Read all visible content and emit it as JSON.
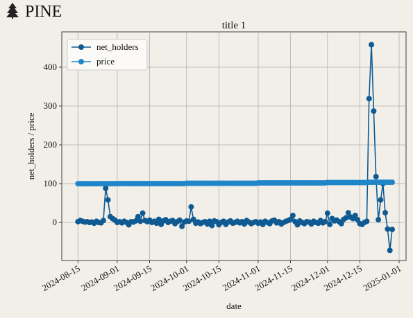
{
  "logo": "PINE",
  "chart_data": {
    "type": "line",
    "title": "title 1",
    "xlabel": "date",
    "ylabel": "net_holders / price",
    "x": [
      "2024-08-15",
      "2024-08-16",
      "2024-08-17",
      "2024-08-18",
      "2024-08-19",
      "2024-08-20",
      "2024-08-21",
      "2024-08-22",
      "2024-08-23",
      "2024-08-24",
      "2024-08-25",
      "2024-08-26",
      "2024-08-27",
      "2024-08-28",
      "2024-08-29",
      "2024-08-30",
      "2024-08-31",
      "2024-09-01",
      "2024-09-02",
      "2024-09-03",
      "2024-09-04",
      "2024-09-05",
      "2024-09-06",
      "2024-09-07",
      "2024-09-08",
      "2024-09-09",
      "2024-09-10",
      "2024-09-11",
      "2024-09-12",
      "2024-09-13",
      "2024-09-14",
      "2024-09-15",
      "2024-09-16",
      "2024-09-17",
      "2024-09-18",
      "2024-09-19",
      "2024-09-20",
      "2024-09-21",
      "2024-09-22",
      "2024-09-23",
      "2024-09-24",
      "2024-09-25",
      "2024-09-26",
      "2024-09-27",
      "2024-09-28",
      "2024-09-29",
      "2024-09-30",
      "2024-10-01",
      "2024-10-02",
      "2024-10-03",
      "2024-10-04",
      "2024-10-05",
      "2024-10-06",
      "2024-10-07",
      "2024-10-08",
      "2024-10-09",
      "2024-10-10",
      "2024-10-11",
      "2024-10-12",
      "2024-10-13",
      "2024-10-14",
      "2024-10-15",
      "2024-10-16",
      "2024-10-17",
      "2024-10-18",
      "2024-10-19",
      "2024-10-20",
      "2024-10-21",
      "2024-10-22",
      "2024-10-23",
      "2024-10-24",
      "2024-10-25",
      "2024-10-26",
      "2024-10-27",
      "2024-10-28",
      "2024-10-29",
      "2024-10-30",
      "2024-10-31",
      "2024-11-01",
      "2024-11-02",
      "2024-11-03",
      "2024-11-04",
      "2024-11-05",
      "2024-11-06",
      "2024-11-07",
      "2024-11-08",
      "2024-11-09",
      "2024-11-10",
      "2024-11-11",
      "2024-11-12",
      "2024-11-13",
      "2024-11-14",
      "2024-11-15",
      "2024-11-16",
      "2024-11-17",
      "2024-11-18",
      "2024-11-19",
      "2024-11-20",
      "2024-11-21",
      "2024-11-22",
      "2024-11-23",
      "2024-11-24",
      "2024-11-25",
      "2024-11-26",
      "2024-11-27",
      "2024-11-28",
      "2024-11-29",
      "2024-11-30",
      "2024-12-01",
      "2024-12-02",
      "2024-12-03",
      "2024-12-04",
      "2024-12-05",
      "2024-12-06",
      "2024-12-07",
      "2024-12-08",
      "2024-12-09",
      "2024-12-10",
      "2024-12-11",
      "2024-12-12",
      "2024-12-13",
      "2024-12-14",
      "2024-12-15",
      "2024-12-16",
      "2024-12-17",
      "2024-12-18",
      "2024-12-19",
      "2024-12-20",
      "2024-12-21",
      "2024-12-22",
      "2024-12-23",
      "2024-12-24",
      "2024-12-25",
      "2024-12-26",
      "2024-12-27",
      "2024-12-28",
      "2024-12-29"
    ],
    "series": [
      {
        "name": "net_holders",
        "color": "#0f5a92",
        "values": [
          2,
          5,
          3,
          1,
          2,
          0,
          1,
          -2,
          3,
          0,
          -1,
          5,
          88,
          58,
          15,
          10,
          6,
          0,
          2,
          -1,
          3,
          0,
          -6,
          2,
          1,
          4,
          15,
          3,
          24,
          5,
          2,
          6,
          0,
          3,
          -2,
          8,
          -5,
          4,
          7,
          0,
          3,
          5,
          -3,
          2,
          6,
          -10,
          1,
          4,
          3,
          40,
          8,
          -2,
          1,
          -3,
          0,
          2,
          -4,
          3,
          -8,
          4,
          2,
          -6,
          0,
          3,
          -5,
          1,
          4,
          -2,
          0,
          3,
          -1,
          2,
          -4,
          5,
          1,
          -3,
          0,
          2,
          -2,
          1,
          -5,
          3,
          0,
          -3,
          4,
          6,
          -1,
          2,
          -4,
          0,
          3,
          5,
          8,
          18,
          2,
          -6,
          4,
          0,
          -3,
          2,
          1,
          -4,
          3,
          0,
          -2,
          5,
          -1,
          2,
          24,
          -5,
          10,
          4,
          6,
          2,
          -3,
          8,
          12,
          25,
          14,
          10,
          18,
          7,
          -3,
          -5,
          0,
          3,
          319,
          458,
          287,
          118,
          7,
          58,
          100,
          25,
          -17,
          -72,
          -18
        ]
      },
      {
        "name": "price",
        "color": "#1f86c8",
        "values": [
          99.8,
          99.8,
          99.8,
          99.8,
          99.8,
          99.8,
          99.8,
          99.8,
          99.8,
          99.8,
          99.8,
          99.8,
          99.8,
          99.8,
          99.8,
          99.8,
          99.8,
          100.2,
          100.2,
          100.2,
          100.2,
          100.2,
          100.2,
          100.2,
          100.2,
          100.2,
          100.2,
          100.2,
          100.2,
          100.2,
          100.2,
          100.2,
          100.2,
          100.2,
          100.2,
          100.2,
          100.2,
          100.2,
          100.2,
          100.2,
          100.2,
          100.2,
          100.2,
          100.2,
          100.2,
          100.2,
          100.2,
          101,
          101,
          101,
          101,
          101,
          101,
          101,
          101,
          101,
          101,
          101,
          101,
          101,
          101,
          101,
          101,
          101,
          101,
          101,
          101,
          101,
          101,
          101,
          101,
          101,
          101,
          101,
          101,
          101,
          101,
          101,
          101.8,
          101.8,
          101.8,
          101.8,
          101.8,
          101.8,
          101.8,
          101.8,
          101.8,
          101.8,
          101.8,
          101.8,
          101.8,
          101.8,
          101.8,
          101.8,
          101.8,
          101.8,
          101.8,
          101.8,
          101.8,
          101.8,
          101.8,
          101.8,
          101.8,
          101.8,
          101.8,
          101.8,
          101.8,
          101.8,
          102.8,
          102.8,
          102.8,
          102.8,
          102.8,
          102.8,
          102.8,
          102.8,
          102.8,
          102.8,
          102.8,
          102.8,
          102.8,
          102.8,
          102.8,
          102.8,
          102.8,
          102.8,
          103.5,
          103.5,
          103.5,
          103.5,
          103.5,
          103.5,
          103.5,
          103.5,
          103.5,
          103.5,
          103.5
        ]
      }
    ],
    "xlim": [
      "2024-08-08",
      "2025-01-04"
    ],
    "xticks": [
      "2024-08-15",
      "2024-09-01",
      "2024-09-15",
      "2024-10-01",
      "2024-10-15",
      "2024-11-01",
      "2024-11-15",
      "2024-12-01",
      "2024-12-15",
      "2025-01-01"
    ],
    "ylim": [
      -98,
      491
    ],
    "yticks": [
      0,
      100,
      200,
      300,
      400
    ],
    "grid": true,
    "legend": "upper left"
  }
}
